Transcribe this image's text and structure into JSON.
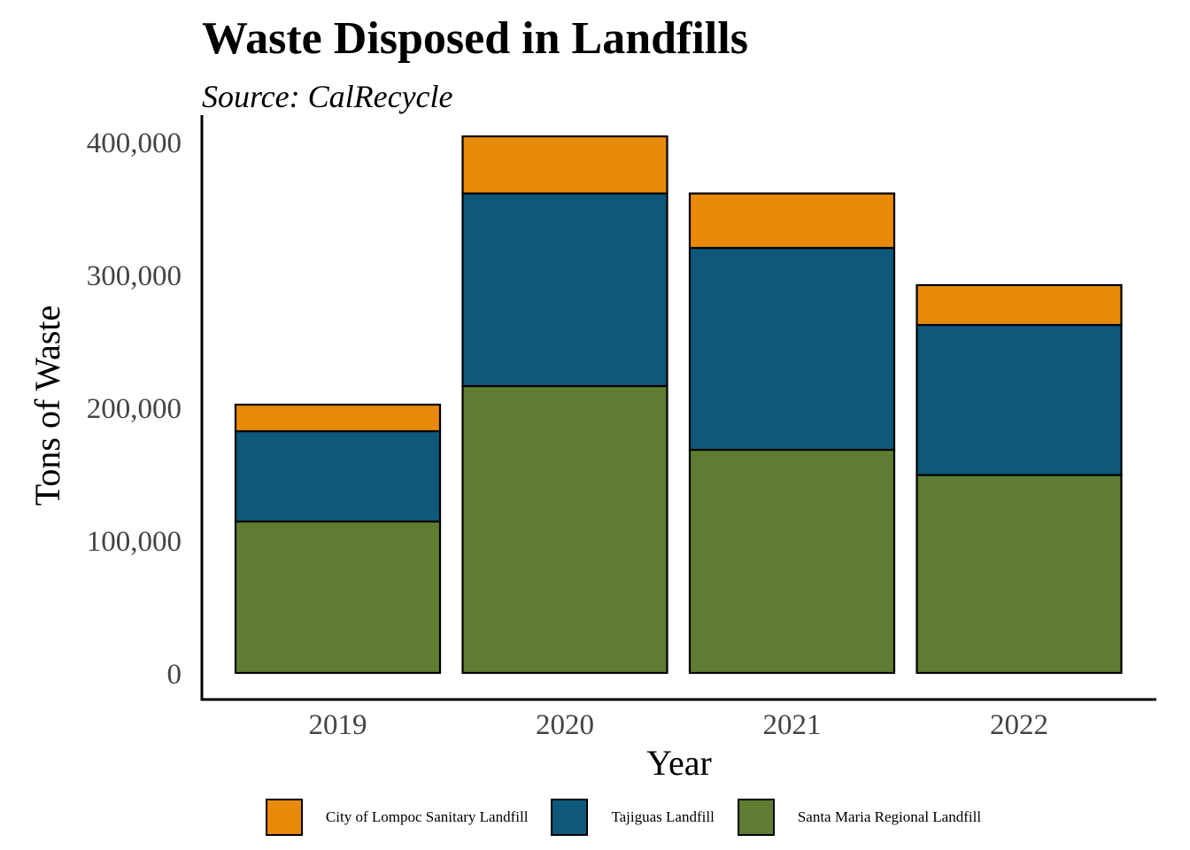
{
  "chart_data": {
    "type": "bar",
    "stacked": true,
    "title": "Waste Disposed in Landfills",
    "subtitle": "Source: CalRecycle",
    "xlabel": "Year",
    "ylabel": "Tons of Waste",
    "categories": [
      "2019",
      "2020",
      "2021",
      "2022"
    ],
    "ylim": [
      0,
      410000
    ],
    "yticks": [
      0,
      100000,
      200000,
      300000,
      400000
    ],
    "ytick_labels": [
      "0",
      "100,000",
      "200,000",
      "300,000",
      "400,000"
    ],
    "grid": false,
    "legend_position": "bottom",
    "series": [
      {
        "name": "Santa Maria Regional Landfill",
        "color": "#5e7d32",
        "values": [
          114000,
          216000,
          168000,
          149000
        ]
      },
      {
        "name": "Tajiguas Landfill",
        "color": "#0e587a",
        "values": [
          68000,
          145000,
          152000,
          113000
        ]
      },
      {
        "name": "City of Lompoc Sanitary Landfill",
        "color": "#e88a08",
        "values": [
          20000,
          43000,
          41000,
          30000
        ]
      }
    ],
    "legend_order": [
      2,
      1,
      0
    ]
  }
}
